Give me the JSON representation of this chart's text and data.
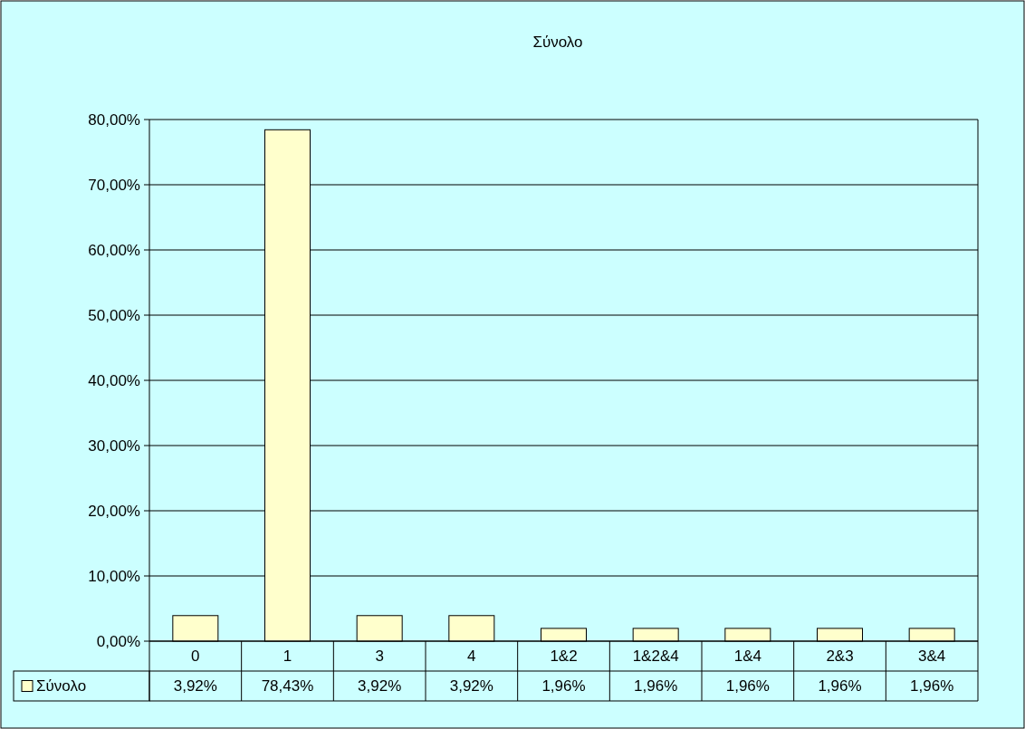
{
  "chart_data": {
    "type": "bar",
    "title": "Σύνολο",
    "categories": [
      "0",
      "1",
      "3",
      "4",
      "1&2",
      "1&2&4",
      "1&4",
      "2&3",
      "3&4"
    ],
    "series": [
      {
        "name": "Σύνολο",
        "color": "#ffffcc",
        "values": [
          3.92,
          78.43,
          3.92,
          3.92,
          1.96,
          1.96,
          1.96,
          1.96,
          1.96
        ],
        "value_labels": [
          "3,92%",
          "78,43%",
          "3,92%",
          "3,92%",
          "1,96%",
          "1,96%",
          "1,96%",
          "1,96%",
          "1,96%"
        ]
      }
    ],
    "ylim": [
      0,
      80
    ],
    "yticks": [
      {
        "value": 0,
        "label": "0,00%"
      },
      {
        "value": 10,
        "label": "10,00%"
      },
      {
        "value": 20,
        "label": "20,00%"
      },
      {
        "value": 30,
        "label": "30,00%"
      },
      {
        "value": 40,
        "label": "40,00%"
      },
      {
        "value": 50,
        "label": "50,00%"
      },
      {
        "value": 60,
        "label": "60,00%"
      },
      {
        "value": 70,
        "label": "70,00%"
      },
      {
        "value": 80,
        "label": "80,00%"
      }
    ],
    "grid": "y",
    "legend": "bottom left"
  }
}
